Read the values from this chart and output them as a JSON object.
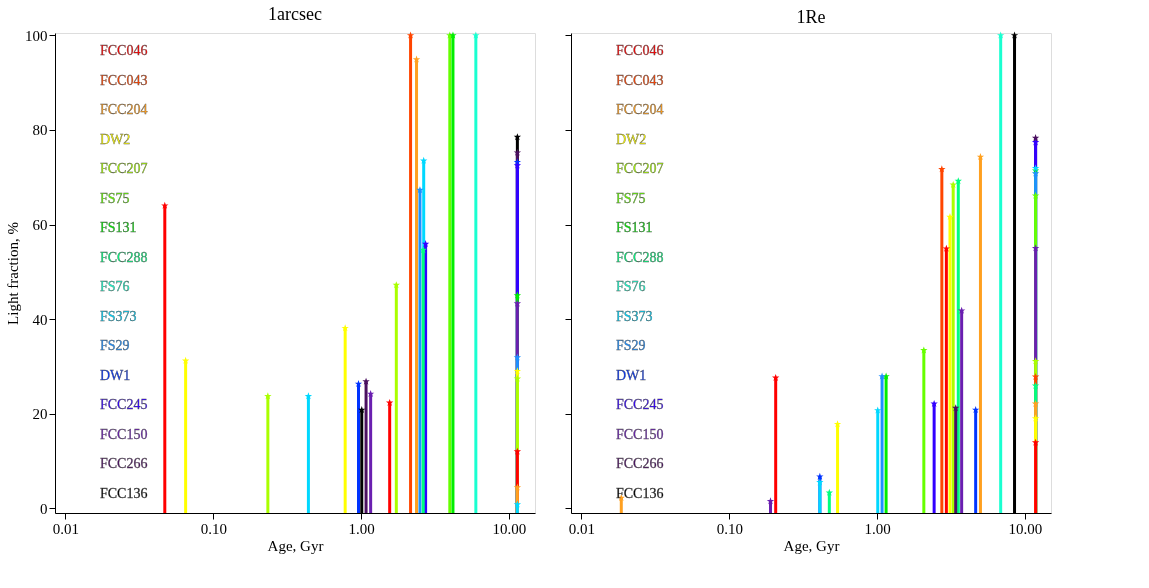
{
  "chart_data": [
    {
      "type": "lollipop",
      "title": "1arcsec",
      "xlabel": "Age, Gyr",
      "ylabel": "Light fraction, %",
      "log": "x",
      "grid": false,
      "legend": "top left",
      "marker": "star",
      "xlim": [
        0.0085,
        15
      ],
      "xticks": [
        0.01,
        {
          "value": 0.1,
          "label": "0.10"
        },
        {
          "value": 1,
          "label": "1.00"
        },
        {
          "value": 10,
          "label": "10.00"
        }
      ],
      "ylim": [
        -1,
        100.5
      ],
      "yticks": [
        0,
        20,
        40,
        60,
        80,
        100
      ],
      "series": [
        {
          "name": "FCC046",
          "color": "#ff0000",
          "x": [
            0.047,
            1.56,
            11.4
          ],
          "values": [
            64,
            22.3,
            12
          ]
        },
        {
          "name": "FCC043",
          "color": "#ff4500",
          "x": [
            2.16
          ],
          "values": [
            100
          ]
        },
        {
          "name": "FCC204",
          "color": "#ffa020",
          "x": [
            2.37,
            11.4
          ],
          "values": [
            94.9,
            4.4
          ]
        },
        {
          "name": "DW2",
          "color": "#ffff00",
          "x": [
            0.065,
            0.78,
            11.4
          ],
          "values": [
            31.2,
            38.1,
            29
          ]
        },
        {
          "name": "FCC207",
          "color": "#aaff00",
          "x": [
            0.234,
            1.73,
            11.4
          ],
          "values": [
            23.7,
            47.2,
            27.4
          ]
        },
        {
          "name": "FS75",
          "color": "#66ff00",
          "x": [
            3.98
          ],
          "values": [
            100
          ]
        },
        {
          "name": "FS131",
          "color": "#00ee00",
          "x": [
            4.18,
            11.4
          ],
          "values": [
            100,
            45
          ]
        },
        {
          "name": "FCC288",
          "color": "#00ff80",
          "x": [
            2.63
          ],
          "values": [
            54.6
          ]
        },
        {
          "name": "FS76",
          "color": "#1affd0",
          "x": [
            5.97
          ],
          "values": [
            100
          ]
        },
        {
          "name": "FS373",
          "color": "#00d8ff",
          "x": [
            0.44,
            2.65,
            11.4
          ],
          "values": [
            23.7,
            73.5,
            0.8
          ]
        },
        {
          "name": "FS29",
          "color": "#1e90ff",
          "x": [
            2.5,
            11.4
          ],
          "values": [
            67.3,
            31.9
          ]
        },
        {
          "name": "DW1",
          "color": "#0033ff",
          "x": [
            0.96,
            11.4
          ],
          "values": [
            26.3,
            73.2
          ]
        },
        {
          "name": "FCC245",
          "color": "#3300ff",
          "x": [
            2.73,
            11.4
          ],
          "values": [
            55.9,
            72.5
          ]
        },
        {
          "name": "FCC150",
          "color": "#6a1fb0",
          "x": [
            1.16,
            11.4
          ],
          "values": [
            24.2,
            43.3
          ]
        },
        {
          "name": "FCC266",
          "color": "#4b1060",
          "x": [
            1.08,
            11.4
          ],
          "values": [
            26.8,
            75.2
          ]
        },
        {
          "name": "FCC136",
          "color": "#000000",
          "x": [
            1.01,
            11.4
          ],
          "values": [
            20.8,
            78.5
          ]
        }
      ]
    },
    {
      "type": "lollipop",
      "title": "1Re",
      "xlabel": "Age, Gyr",
      "log": "x",
      "grid": false,
      "legend": "top left",
      "marker": "star",
      "tick_labels": "x",
      "xlim": [
        0.0085,
        15
      ],
      "xticks": [
        0.01,
        {
          "value": 0.1,
          "label": "0.10"
        },
        {
          "value": 1,
          "label": "1.00"
        },
        {
          "value": 10,
          "label": "10.00"
        }
      ],
      "ylim": [
        -1,
        100.5
      ],
      "yticks": [
        0,
        20,
        40,
        60,
        80,
        100
      ],
      "series": [
        {
          "name": "FCC046",
          "color": "#ff0000",
          "x": [
            0.206,
            2.94,
            11.8
          ],
          "values": [
            27.6,
            54.9,
            13.9
          ]
        },
        {
          "name": "FCC043",
          "color": "#ff4500",
          "x": [
            2.74,
            11.8
          ],
          "values": [
            71.7,
            27.8
          ]
        },
        {
          "name": "FCC204",
          "color": "#ffa020",
          "x": [
            0.0186,
            5.0,
            11.8
          ],
          "values": [
            2.2,
            74.3,
            22.1
          ]
        },
        {
          "name": "DW2",
          "color": "#ffff00",
          "x": [
            0.54,
            3.11,
            11.8
          ],
          "values": [
            17.8,
            61.6,
            19
          ]
        },
        {
          "name": "FCC207",
          "color": "#aaff00",
          "x": [
            3.27,
            11.8
          ],
          "values": [
            68.4,
            31.1
          ]
        },
        {
          "name": "FS75",
          "color": "#66ff00",
          "x": [
            2.07,
            11.8
          ],
          "values": [
            33.4,
            66.1
          ]
        },
        {
          "name": "FS131",
          "color": "#00ee00",
          "x": [
            1.15,
            11.8
          ],
          "values": [
            27.9,
            71.4
          ]
        },
        {
          "name": "FCC288",
          "color": "#00ff80",
          "x": [
            0.475,
            3.54,
            11.8
          ],
          "values": [
            3.3,
            69.2,
            25.9
          ]
        },
        {
          "name": "FS76",
          "color": "#1affd0",
          "x": [
            6.85
          ],
          "values": [
            100
          ]
        },
        {
          "name": "FS373",
          "color": "#00d8ff",
          "x": [
            0.41,
            1.01,
            11.8
          ],
          "values": [
            5.5,
            20.7,
            71.9
          ]
        },
        {
          "name": "FS29",
          "color": "#1e90ff",
          "x": [
            1.08,
            11.8
          ],
          "values": [
            27.9,
            70.8
          ]
        },
        {
          "name": "DW1",
          "color": "#0033ff",
          "x": [
            0.41,
            4.64
          ],
          "values": [
            6.7,
            20.8
          ]
        },
        {
          "name": "FCC245",
          "color": "#3300ff",
          "x": [
            2.43,
            11.8
          ],
          "values": [
            22.1,
            77.4
          ]
        },
        {
          "name": "FCC150",
          "color": "#6a1fb0",
          "x": [
            0.19,
            3.73,
            11.8
          ],
          "values": [
            1.5,
            41.8,
            55
          ]
        },
        {
          "name": "FCC266",
          "color": "#4b1060",
          "x": [
            3.4,
            11.8
          ],
          "values": [
            21.2,
            78.3
          ]
        },
        {
          "name": "FCC136",
          "color": "#000000",
          "x": [
            8.5
          ],
          "values": [
            100
          ]
        }
      ]
    }
  ]
}
